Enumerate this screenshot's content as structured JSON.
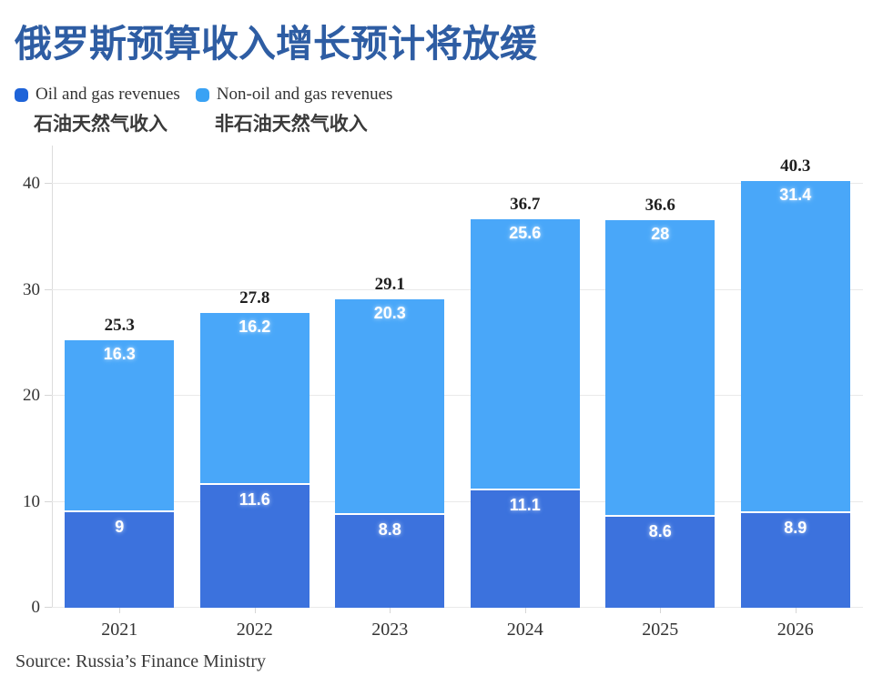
{
  "title": "俄罗斯预算收入增长预计将放缓",
  "legend": [
    {
      "label_en": "Oil and gas revenues",
      "label_zh": "石油天然气收入",
      "swatch_color": "#1e63d8"
    },
    {
      "label_en": "Non-oil and gas revenues",
      "label_zh": "非石油天然气收入",
      "swatch_color": "#3aa2f4"
    }
  ],
  "source": "Source: Russia’s Finance Ministry",
  "chart_data": {
    "type": "bar",
    "stacked": true,
    "title": "俄罗斯预算收入增长预计将放缓",
    "categories": [
      "2021",
      "2022",
      "2023",
      "2024",
      "2025",
      "2026"
    ],
    "series": [
      {
        "name": "Oil and gas revenues",
        "name_zh": "石油天然气收入",
        "color": "#3c72dd",
        "values": [
          9,
          11.6,
          8.8,
          11.1,
          8.6,
          8.9
        ]
      },
      {
        "name": "Non-oil and gas revenues",
        "name_zh": "非石油天然气收入",
        "color": "#49a7f9",
        "values": [
          16.3,
          16.2,
          20.3,
          25.6,
          28,
          31.4
        ]
      }
    ],
    "totals": [
      25.3,
      27.8,
      29.1,
      36.7,
      36.6,
      40.3
    ],
    "yticks": [
      0,
      10,
      20,
      30,
      40
    ],
    "ylim": [
      0,
      44.5
    ],
    "grid": true,
    "legend_position": "top-left",
    "xlabel": "",
    "ylabel": ""
  }
}
